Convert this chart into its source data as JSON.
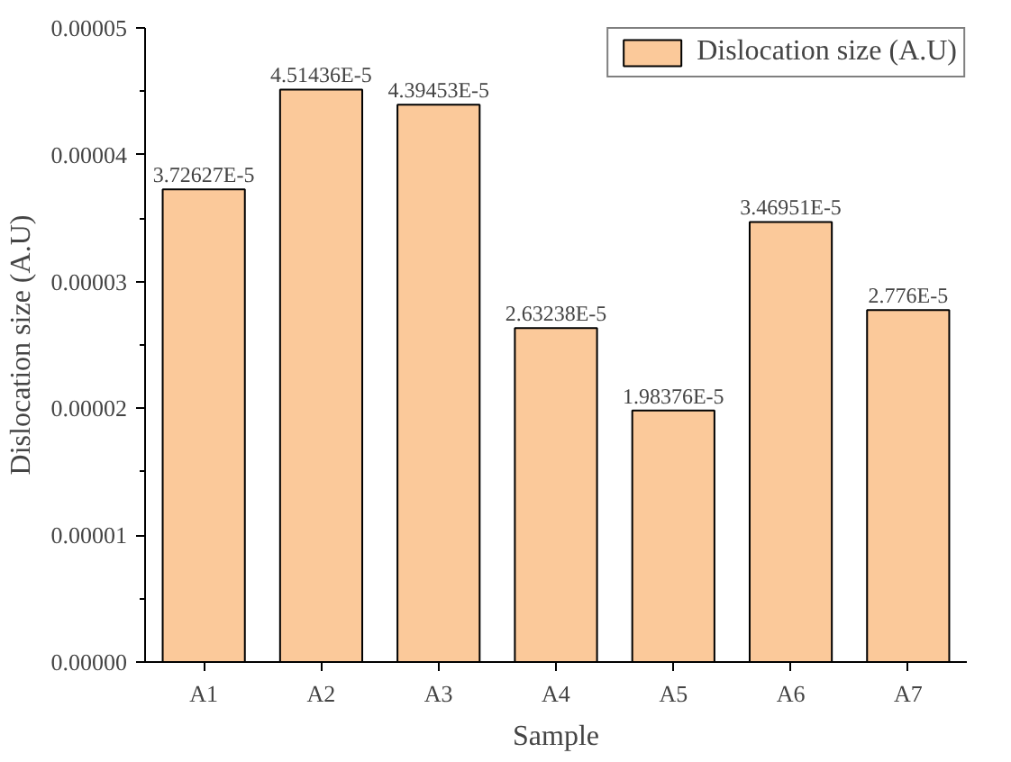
{
  "chart_data": {
    "type": "bar",
    "xlabel": "Sample",
    "ylabel": "Dislocation size (A.U)",
    "categories": [
      "A1",
      "A2",
      "A3",
      "A4",
      "A5",
      "A6",
      "A7"
    ],
    "series": [
      {
        "name": "Dislocation size (A.U)",
        "color": "#fbc99a",
        "values": [
          3.72627e-05,
          4.51436e-05,
          4.39453e-05,
          2.63238e-05,
          1.98376e-05,
          3.46951e-05,
          2.776e-05
        ],
        "value_labels": [
          "3.72627E-5",
          "4.51436E-5",
          "4.39453E-5",
          "2.63238E-5",
          "1.98376E-5",
          "3.46951E-5",
          "2.776E-5"
        ]
      }
    ],
    "ylim": [
      0,
      5e-05
    ],
    "yticks": [
      {
        "value": 0,
        "label": "0.00000"
      },
      {
        "value": 1e-05,
        "label": "0.00001"
      },
      {
        "value": 2e-05,
        "label": "0.00002"
      },
      {
        "value": 3e-05,
        "label": "0.00003"
      },
      {
        "value": 4e-05,
        "label": "0.00004"
      },
      {
        "value": 5e-05,
        "label": "0.00005"
      }
    ],
    "grid": false,
    "legend": "top right"
  }
}
